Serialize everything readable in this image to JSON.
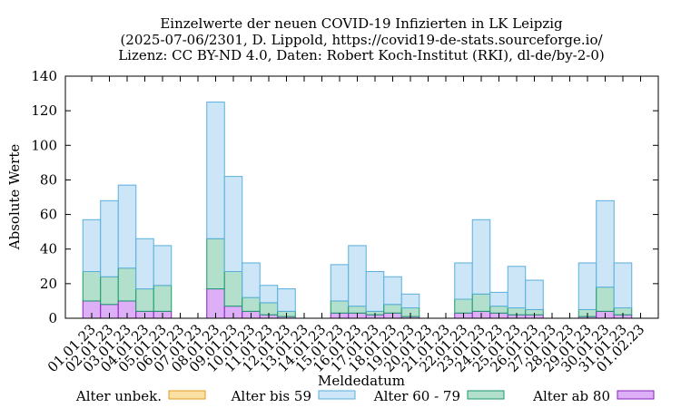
{
  "chart_data": {
    "type": "bar",
    "stacked": true,
    "title": "Einzelwerte der neuen COVID-19 Infizierten in LK Leipzig",
    "subtitle1": "(2025-07-06/2301, D. Lippold, https://covid19-de-stats.sourceforge.io/",
    "subtitle2": "Lizenz: CC BY-ND 4.0, Daten: Robert Koch-Institut (RKI), dl-de/by-2-0)",
    "xlabel": "Meldedatum",
    "ylabel": "Absolute Werte",
    "ylim": [
      0,
      140
    ],
    "yticks": [
      "0",
      "20",
      "40",
      "60",
      "80",
      "100",
      "120",
      "140"
    ],
    "categories": [
      "01.01.23",
      "02.01.23",
      "03.01.23",
      "04.01.23",
      "05.01.23",
      "06.01.23",
      "07.01.23",
      "08.01.23",
      "09.01.23",
      "10.01.23",
      "11.01.23",
      "12.01.23",
      "13.01.23",
      "14.01.23",
      "15.01.23",
      "16.01.23",
      "17.01.23",
      "18.01.23",
      "19.01.23",
      "20.01.23",
      "21.01.23",
      "22.01.23",
      "23.01.23",
      "24.01.23",
      "25.01.23",
      "26.01.23",
      "27.01.23",
      "28.01.23",
      "29.01.23",
      "30.01.23",
      "31.01.23",
      "01.02.23"
    ],
    "series": [
      {
        "name": "Alter ab 80",
        "fill": "#dcaff6",
        "stroke": "#8e1fbf",
        "values": [
          10,
          8,
          10,
          4,
          4,
          0,
          0,
          17,
          7,
          4,
          2,
          1,
          0,
          0,
          3,
          3,
          2,
          3,
          1,
          0,
          0,
          3,
          4,
          3,
          2,
          2,
          0,
          0,
          1,
          4,
          2,
          0
        ]
      },
      {
        "name": "Alter 60 - 79",
        "fill": "#b2e0cd",
        "stroke": "#1a9a6c",
        "values": [
          17,
          16,
          19,
          13,
          15,
          0,
          0,
          29,
          20,
          8,
          7,
          3,
          0,
          0,
          7,
          4,
          2,
          5,
          5,
          0,
          0,
          8,
          10,
          4,
          4,
          3,
          0,
          0,
          4,
          14,
          4,
          0
        ]
      },
      {
        "name": "Alter bis 59",
        "fill": "#cce6f8",
        "stroke": "#59afdc",
        "values": [
          30,
          44,
          48,
          29,
          23,
          0,
          0,
          79,
          55,
          20,
          10,
          13,
          0,
          0,
          21,
          35,
          23,
          16,
          8,
          0,
          0,
          21,
          43,
          8,
          24,
          17,
          0,
          0,
          27,
          50,
          26,
          0
        ]
      },
      {
        "name": "Alter unbek.",
        "fill": "#fbe0a6",
        "stroke": "#e09b1c",
        "values": [
          0,
          0,
          0,
          0,
          0,
          0,
          0,
          0,
          0,
          0,
          0,
          0,
          0,
          0,
          0,
          0,
          0,
          0,
          0,
          0,
          0,
          0,
          0,
          0,
          0,
          0,
          0,
          0,
          0,
          0,
          0,
          0
        ]
      }
    ],
    "legend": [
      "Alter unbek.",
      "Alter bis 59",
      "Alter 60 - 79",
      "Alter ab 80"
    ],
    "legend_position": "bottom"
  }
}
